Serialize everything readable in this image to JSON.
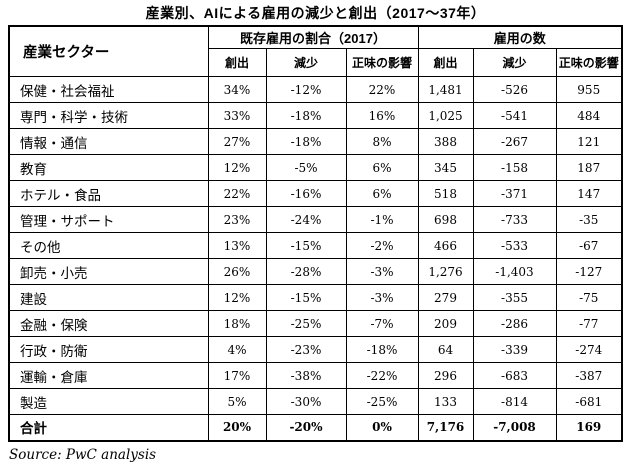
{
  "title": "産業別、AIによる雇用の減少と創出（2017～37年）",
  "source": "Source: PwC analysis",
  "colors": {
    "text": "#000000",
    "background": "#ffffff",
    "border": "#000000"
  },
  "table": {
    "sector_header": "産業セクター",
    "group_headers": [
      "既存雇用の割合（2017）",
      "雇用の数"
    ],
    "sub_headers": [
      "創出",
      "減少",
      "正味の影響",
      "創出",
      "減少",
      "正味の影響"
    ],
    "rows": [
      {
        "sector": "保健・社会福祉",
        "values": [
          "34%",
          "-12%",
          "22%",
          "1,481",
          "-526",
          "955"
        ],
        "bold": false
      },
      {
        "sector": "専門・科学・技術",
        "values": [
          "33%",
          "-18%",
          "16%",
          "1,025",
          "-541",
          "484"
        ],
        "bold": false
      },
      {
        "sector": "情報・通信",
        "values": [
          "27%",
          "-18%",
          "8%",
          "388",
          "-267",
          "121"
        ],
        "bold": false
      },
      {
        "sector": "教育",
        "values": [
          "12%",
          "-5%",
          "6%",
          "345",
          "-158",
          "187"
        ],
        "bold": false
      },
      {
        "sector": "ホテル・食品",
        "values": [
          "22%",
          "-16%",
          "6%",
          "518",
          "-371",
          "147"
        ],
        "bold": false
      },
      {
        "sector": "管理・サポート",
        "values": [
          "23%",
          "-24%",
          "-1%",
          "698",
          "-733",
          "-35"
        ],
        "bold": false
      },
      {
        "sector": "その他",
        "values": [
          "13%",
          "-15%",
          "-2%",
          "466",
          "-533",
          "-67"
        ],
        "bold": false
      },
      {
        "sector": "卸売・小売",
        "values": [
          "26%",
          "-28%",
          "-3%",
          "1,276",
          "-1,403",
          "-127"
        ],
        "bold": false
      },
      {
        "sector": "建設",
        "values": [
          "12%",
          "-15%",
          "-3%",
          "279",
          "-355",
          "-75"
        ],
        "bold": false
      },
      {
        "sector": "金融・保険",
        "values": [
          "18%",
          "-25%",
          "-7%",
          "209",
          "-286",
          "-77"
        ],
        "bold": false
      },
      {
        "sector": "行政・防衛",
        "values": [
          "4%",
          "-23%",
          "-18%",
          "64",
          "-339",
          "-274"
        ],
        "bold": false
      },
      {
        "sector": "運輸・倉庫",
        "values": [
          "17%",
          "-38%",
          "-22%",
          "296",
          "-683",
          "-387"
        ],
        "bold": false
      },
      {
        "sector": "製造",
        "values": [
          "5%",
          "-30%",
          "-25%",
          "133",
          "-814",
          "-681"
        ],
        "bold": false
      },
      {
        "sector": "合計",
        "values": [
          "20%",
          "-20%",
          "0%",
          "7,176",
          "-7,008",
          "169"
        ],
        "bold": true
      }
    ]
  },
  "chart_data": {
    "type": "table",
    "title": "産業別、AIによる雇用の減少と創出（2017～37年）",
    "column_groups": [
      {
        "label": "既存雇用の割合（2017）",
        "columns": [
          "創出",
          "減少",
          "正味の影響"
        ]
      },
      {
        "label": "雇用の数",
        "columns": [
          "創出",
          "減少",
          "正味の影響"
        ]
      }
    ],
    "row_header": "産業セクター",
    "rows": [
      {
        "sector": "保健・社会福祉",
        "share_created_pct": 34,
        "share_lost_pct": -12,
        "share_net_pct": 22,
        "jobs_created": 1481,
        "jobs_lost": -526,
        "jobs_net": 955
      },
      {
        "sector": "専門・科学・技術",
        "share_created_pct": 33,
        "share_lost_pct": -18,
        "share_net_pct": 16,
        "jobs_created": 1025,
        "jobs_lost": -541,
        "jobs_net": 484
      },
      {
        "sector": "情報・通信",
        "share_created_pct": 27,
        "share_lost_pct": -18,
        "share_net_pct": 8,
        "jobs_created": 388,
        "jobs_lost": -267,
        "jobs_net": 121
      },
      {
        "sector": "教育",
        "share_created_pct": 12,
        "share_lost_pct": -5,
        "share_net_pct": 6,
        "jobs_created": 345,
        "jobs_lost": -158,
        "jobs_net": 187
      },
      {
        "sector": "ホテル・食品",
        "share_created_pct": 22,
        "share_lost_pct": -16,
        "share_net_pct": 6,
        "jobs_created": 518,
        "jobs_lost": -371,
        "jobs_net": 147
      },
      {
        "sector": "管理・サポート",
        "share_created_pct": 23,
        "share_lost_pct": -24,
        "share_net_pct": -1,
        "jobs_created": 698,
        "jobs_lost": -733,
        "jobs_net": -35
      },
      {
        "sector": "その他",
        "share_created_pct": 13,
        "share_lost_pct": -15,
        "share_net_pct": -2,
        "jobs_created": 466,
        "jobs_lost": -533,
        "jobs_net": -67
      },
      {
        "sector": "卸売・小売",
        "share_created_pct": 26,
        "share_lost_pct": -28,
        "share_net_pct": -3,
        "jobs_created": 1276,
        "jobs_lost": -1403,
        "jobs_net": -127
      },
      {
        "sector": "建設",
        "share_created_pct": 12,
        "share_lost_pct": -15,
        "share_net_pct": -3,
        "jobs_created": 279,
        "jobs_lost": -355,
        "jobs_net": -75
      },
      {
        "sector": "金融・保険",
        "share_created_pct": 18,
        "share_lost_pct": -25,
        "share_net_pct": -7,
        "jobs_created": 209,
        "jobs_lost": -286,
        "jobs_net": -77
      },
      {
        "sector": "行政・防衛",
        "share_created_pct": 4,
        "share_lost_pct": -23,
        "share_net_pct": -18,
        "jobs_created": 64,
        "jobs_lost": -339,
        "jobs_net": -274
      },
      {
        "sector": "運輸・倉庫",
        "share_created_pct": 17,
        "share_lost_pct": -38,
        "share_net_pct": -22,
        "jobs_created": 296,
        "jobs_lost": -683,
        "jobs_net": -387
      },
      {
        "sector": "製造",
        "share_created_pct": 5,
        "share_lost_pct": -30,
        "share_net_pct": -25,
        "jobs_created": 133,
        "jobs_lost": -814,
        "jobs_net": -681
      }
    ],
    "total_row": {
      "sector": "合計",
      "share_created_pct": 20,
      "share_lost_pct": -20,
      "share_net_pct": 0,
      "jobs_created": 7176,
      "jobs_lost": -7008,
      "jobs_net": 169
    },
    "source": "Source: PwC analysis"
  }
}
